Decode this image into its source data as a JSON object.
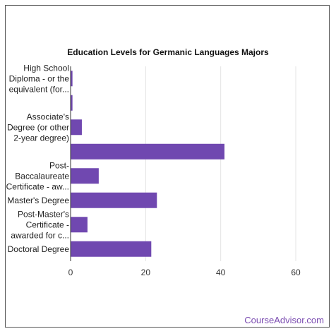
{
  "brand": "CourseAdvisor.com",
  "colors": {
    "bar": "#7048b0",
    "grid": "#e4e4e4",
    "axis": "#333333",
    "brand": "#7a4bb0"
  },
  "chart_data": {
    "type": "bar",
    "orientation": "horizontal",
    "title": "Education Levels for Germanic Languages Majors",
    "categories": [
      [
        "High School",
        "Diploma - or the",
        "equivalent (for..."
      ],
      [],
      [
        "Associate's",
        "Degree (or other",
        "2-year degree)"
      ],
      [],
      [
        "Post-",
        "Baccalaureate",
        "Certificate - aw..."
      ],
      [
        "Master's Degree"
      ],
      [
        "Post-Master's",
        "Certificate -",
        "awarded for c..."
      ],
      [
        "Doctoral Degree"
      ]
    ],
    "values": [
      0.5,
      0.5,
      3,
      41,
      7.5,
      23,
      4.5,
      21.5
    ],
    "xlim": [
      0,
      60
    ],
    "xticks": [
      0,
      20,
      40,
      60
    ],
    "grid": true,
    "xlabel": "",
    "ylabel": ""
  }
}
